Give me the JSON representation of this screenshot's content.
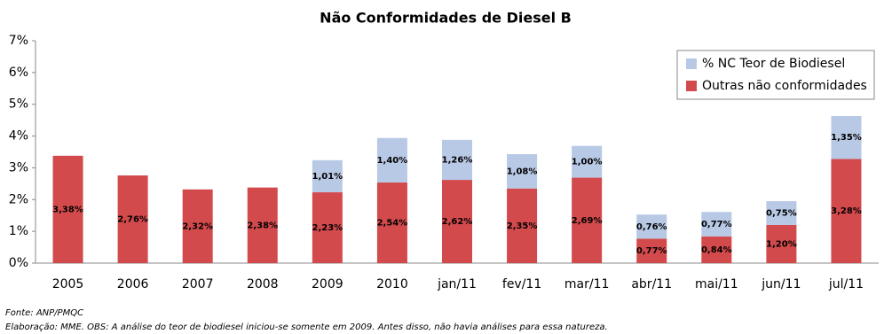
{
  "chart_data": {
    "type": "stacked_bar",
    "title": "Não Conformidades de Diesel B",
    "categories": [
      "2005",
      "2006",
      "2007",
      "2008",
      "2009",
      "2010",
      "jan/11",
      "fev/11",
      "mar/11",
      "abr/11",
      "mai/11",
      "jun/11",
      "jul/11"
    ],
    "series": [
      {
        "name": "Outras não conformidades",
        "color": "#d34a4c",
        "values": [
          3.38,
          2.76,
          2.32,
          2.38,
          2.23,
          2.54,
          2.62,
          2.35,
          2.69,
          0.77,
          0.84,
          1.2,
          3.28
        ],
        "value_labels": [
          "3,38%",
          "2,76%",
          "2,32%",
          "2,38%",
          "2,23%",
          "2,54%",
          "2,62%",
          "2,35%",
          "2,69%",
          "0,77%",
          "0,84%",
          "1,20%",
          "3,28%"
        ]
      },
      {
        "name": "% NC Teor de Biodiesel",
        "color": "#b8c9e5",
        "values": [
          null,
          null,
          null,
          null,
          1.01,
          1.4,
          1.26,
          1.08,
          1.0,
          0.76,
          0.77,
          0.75,
          1.35
        ],
        "value_labels": [
          null,
          null,
          null,
          null,
          "1,01%",
          "1,40%",
          "1,26%",
          "1,08%",
          "1,00%",
          "0,76%",
          "0,77%",
          "0,75%",
          "1,35%"
        ]
      }
    ],
    "ylim": [
      0,
      7
    ],
    "yticks": [
      {
        "value": 0,
        "label": "0%"
      },
      {
        "value": 1,
        "label": "1%"
      },
      {
        "value": 2,
        "label": "2%"
      },
      {
        "value": 3,
        "label": "3%"
      },
      {
        "value": 4,
        "label": "4%"
      },
      {
        "value": 5,
        "label": "5%"
      },
      {
        "value": 6,
        "label": "6%"
      },
      {
        "value": 7,
        "label": "7%"
      }
    ],
    "legend": "top-right",
    "source": "Fonte: ANP/PMQC",
    "note": "Elaboração: MME. OBS: A análise do teor de biodiesel iniciou-se somente em 2009. Antes disso, não havia análises para essa natureza."
  }
}
